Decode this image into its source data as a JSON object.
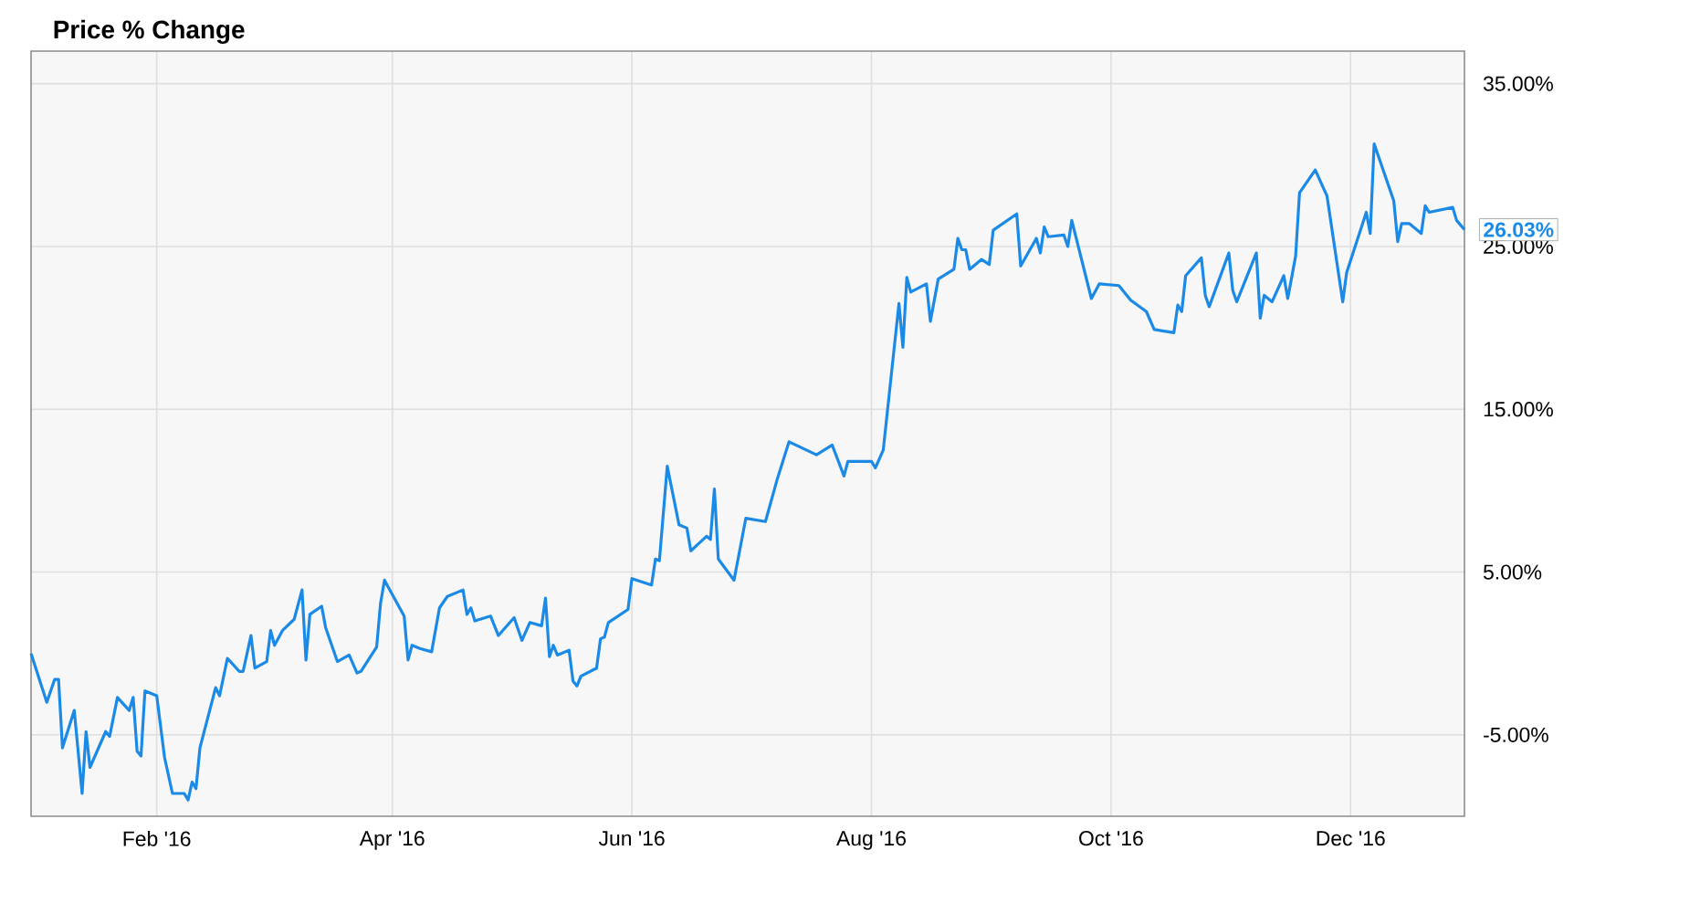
{
  "chart_data": {
    "type": "line",
    "title": "Price % Change",
    "color": "#1a8ae6",
    "grid": true,
    "xlim": [
      "2015-12-31",
      "2016-12-30"
    ],
    "ylim": [
      -10,
      37
    ],
    "xticks": [
      {
        "value": "2016-02-01",
        "label": "Feb '16"
      },
      {
        "value": "2016-04-01",
        "label": "Apr '16"
      },
      {
        "value": "2016-06-01",
        "label": "Jun '16"
      },
      {
        "value": "2016-08-01",
        "label": "Aug '16"
      },
      {
        "value": "2016-10-01",
        "label": "Oct '16"
      },
      {
        "value": "2016-12-01",
        "label": "Dec '16"
      }
    ],
    "yticks": [
      {
        "value": -5,
        "label": "-5.00%"
      },
      {
        "value": 5,
        "label": "5.00%"
      },
      {
        "value": 15,
        "label": "15.00%"
      },
      {
        "value": 25,
        "label": "25.00%"
      },
      {
        "value": 35,
        "label": "35.00%"
      }
    ],
    "annotations": [
      {
        "text": "26.03%",
        "x": "2016-12-30",
        "y": 26.03
      }
    ],
    "x": [
      "2015-12-31",
      "2016-01-04",
      "2016-01-06",
      "2016-01-07",
      "2016-01-08",
      "2016-01-11",
      "2016-01-13",
      "2016-01-14",
      "2016-01-15",
      "2016-01-19",
      "2016-01-20",
      "2016-01-22",
      "2016-01-25",
      "2016-01-26",
      "2016-01-27",
      "2016-01-28",
      "2016-01-29",
      "2016-02-01",
      "2016-02-03",
      "2016-02-05",
      "2016-02-08",
      "2016-02-09",
      "2016-02-10",
      "2016-02-11",
      "2016-02-12",
      "2016-02-16",
      "2016-02-17",
      "2016-02-19",
      "2016-02-22",
      "2016-02-23",
      "2016-02-25",
      "2016-02-26",
      "2016-02-29",
      "2016-03-01",
      "2016-03-02",
      "2016-03-04",
      "2016-03-07",
      "2016-03-09",
      "2016-03-10",
      "2016-03-11",
      "2016-03-14",
      "2016-03-15",
      "2016-03-18",
      "2016-03-21",
      "2016-03-23",
      "2016-03-24",
      "2016-03-28",
      "2016-03-29",
      "2016-03-30",
      "2016-04-04",
      "2016-04-05",
      "2016-04-06",
      "2016-04-08",
      "2016-04-11",
      "2016-04-13",
      "2016-04-15",
      "2016-04-19",
      "2016-04-20",
      "2016-04-21",
      "2016-04-22",
      "2016-04-26",
      "2016-04-28",
      "2016-05-02",
      "2016-05-04",
      "2016-05-06",
      "2016-05-09",
      "2016-05-10",
      "2016-05-11",
      "2016-05-12",
      "2016-05-13",
      "2016-05-16",
      "2016-05-17",
      "2016-05-18",
      "2016-05-19",
      "2016-05-23",
      "2016-05-24",
      "2016-05-25",
      "2016-05-26",
      "2016-05-31",
      "2016-06-01",
      "2016-06-06",
      "2016-06-07",
      "2016-06-08",
      "2016-06-10",
      "2016-06-13",
      "2016-06-15",
      "2016-06-16",
      "2016-06-20",
      "2016-06-21",
      "2016-06-22",
      "2016-06-23",
      "2016-06-27",
      "2016-06-30",
      "2016-07-05",
      "2016-07-08",
      "2016-07-11",
      "2016-07-18",
      "2016-07-22",
      "2016-07-25",
      "2016-07-26",
      "2016-08-01",
      "2016-08-02",
      "2016-08-04",
      "2016-08-08",
      "2016-08-09",
      "2016-08-10",
      "2016-08-11",
      "2016-08-15",
      "2016-08-16",
      "2016-08-18",
      "2016-08-22",
      "2016-08-23",
      "2016-08-24",
      "2016-08-25",
      "2016-08-26",
      "2016-08-29",
      "2016-08-31",
      "2016-09-01",
      "2016-09-07",
      "2016-09-08",
      "2016-09-12",
      "2016-09-13",
      "2016-09-14",
      "2016-09-15",
      "2016-09-19",
      "2016-09-20",
      "2016-09-21",
      "2016-09-26",
      "2016-09-28",
      "2016-10-03",
      "2016-10-06",
      "2016-10-10",
      "2016-10-12",
      "2016-10-17",
      "2016-10-18",
      "2016-10-19",
      "2016-10-20",
      "2016-10-24",
      "2016-10-25",
      "2016-10-26",
      "2016-10-31",
      "2016-11-01",
      "2016-11-02",
      "2016-11-07",
      "2016-11-08",
      "2016-11-09",
      "2016-11-11",
      "2016-11-14",
      "2016-11-15",
      "2016-11-17",
      "2016-11-18",
      "2016-11-22",
      "2016-11-25",
      "2016-11-29",
      "2016-11-30",
      "2016-12-05",
      "2016-12-06",
      "2016-12-07",
      "2016-12-09",
      "2016-12-12",
      "2016-12-13",
      "2016-12-14",
      "2016-12-16",
      "2016-12-19",
      "2016-12-20",
      "2016-12-21",
      "2016-12-27",
      "2016-12-28",
      "2016-12-30"
    ],
    "values": [
      0.0,
      -3.0,
      -1.6,
      -1.6,
      -5.8,
      -3.5,
      -8.6,
      -4.8,
      -7.0,
      -4.8,
      -5.1,
      -2.7,
      -3.5,
      -2.7,
      -6.0,
      -6.3,
      -2.3,
      -2.6,
      -6.4,
      -8.6,
      -8.6,
      -9.0,
      -7.9,
      -8.3,
      -5.8,
      -2.1,
      -2.6,
      -0.3,
      -1.1,
      -1.1,
      1.1,
      -0.9,
      -0.5,
      1.4,
      0.5,
      1.4,
      2.1,
      3.9,
      -0.4,
      2.4,
      2.9,
      1.6,
      -0.5,
      -0.1,
      -1.2,
      -1.1,
      0.4,
      3.1,
      4.5,
      2.3,
      -0.4,
      0.5,
      0.3,
      0.1,
      2.8,
      3.5,
      3.9,
      2.4,
      2.8,
      2.0,
      2.3,
      1.1,
      2.2,
      0.8,
      1.9,
      1.7,
      3.4,
      -0.2,
      0.5,
      -0.1,
      0.2,
      -1.7,
      -2.0,
      -1.4,
      -0.9,
      0.9,
      1.0,
      1.9,
      2.7,
      4.6,
      4.2,
      5.8,
      5.7,
      11.5,
      7.9,
      7.7,
      6.3,
      7.2,
      7.0,
      10.1,
      5.8,
      4.5,
      8.3,
      8.1,
      10.7,
      13.0,
      12.2,
      12.8,
      10.9,
      11.8,
      11.8,
      11.4,
      12.5,
      21.5,
      18.8,
      23.1,
      22.2,
      22.7,
      20.4,
      23.0,
      23.6,
      25.5,
      24.8,
      24.8,
      23.6,
      24.2,
      23.9,
      26.0,
      27.0,
      23.8,
      25.5,
      24.6,
      26.2,
      25.6,
      25.7,
      25.0,
      26.6,
      21.8,
      22.7,
      22.6,
      21.7,
      21.0,
      19.9,
      19.7,
      21.4,
      21.0,
      23.2,
      24.3,
      22.0,
      21.3,
      24.6,
      22.3,
      21.6,
      24.6,
      20.6,
      22.0,
      21.6,
      23.2,
      21.8,
      24.4,
      28.3,
      29.7,
      28.1,
      21.6,
      23.4,
      27.1,
      25.8,
      31.3,
      29.9,
      27.8,
      25.3,
      26.4,
      26.4,
      25.8,
      27.5,
      27.1,
      27.4,
      26.6,
      26.03
    ]
  }
}
